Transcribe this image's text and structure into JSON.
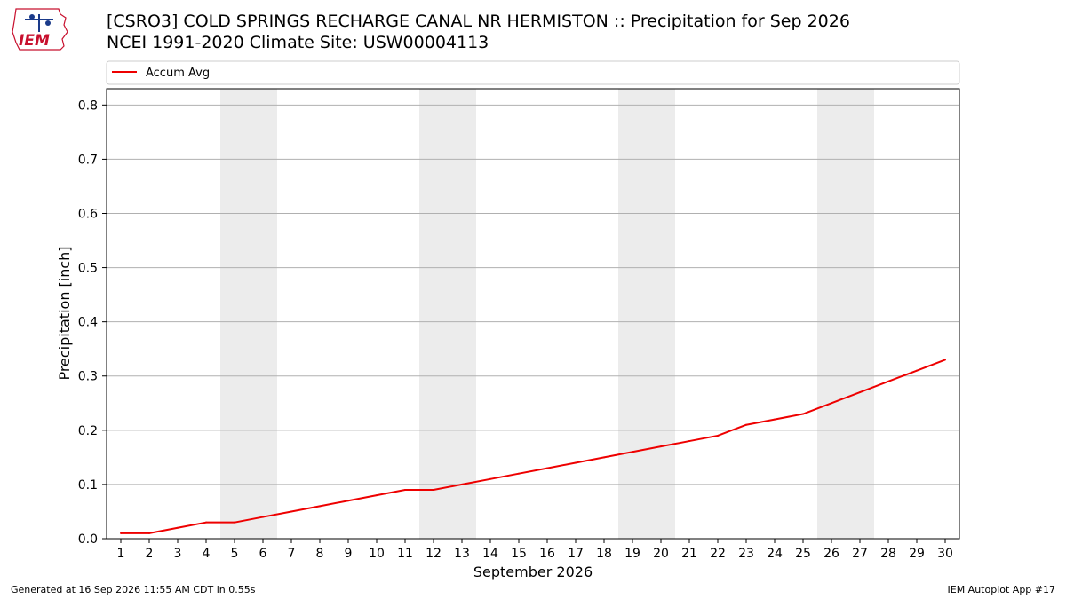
{
  "header": {
    "title_line1": "[CSRO3] COLD SPRINGS RECHARGE CANAL NR HERMISTON :: Precipitation for Sep 2026",
    "title_line2": "NCEI 1991-2020 Climate Site: USW00004113",
    "logo_text": "IEM"
  },
  "footer": {
    "generated": "Generated at 16 Sep 2026 11:55 AM CDT in 0.55s",
    "app": "IEM Autoplot App #17"
  },
  "chart_data": {
    "type": "line",
    "xlabel": "September 2026",
    "ylabel": "Precipitation [inch]",
    "ylim": [
      0,
      0.83
    ],
    "xlim": [
      0.5,
      30.5
    ],
    "yticks": [
      0.0,
      0.1,
      0.2,
      0.3,
      0.4,
      0.5,
      0.6,
      0.7,
      0.8
    ],
    "ytick_labels": [
      "0.0",
      "0.1",
      "0.2",
      "0.3",
      "0.4",
      "0.5",
      "0.6",
      "0.7",
      "0.8"
    ],
    "x": [
      1,
      2,
      3,
      4,
      5,
      6,
      7,
      8,
      9,
      10,
      11,
      12,
      13,
      14,
      15,
      16,
      17,
      18,
      19,
      20,
      21,
      22,
      23,
      24,
      25,
      26,
      27,
      28,
      29,
      30
    ],
    "xtick_labels": [
      "1",
      "2",
      "3",
      "4",
      "5",
      "6",
      "7",
      "8",
      "9",
      "10",
      "11",
      "12",
      "13",
      "14",
      "15",
      "16",
      "17",
      "18",
      "19",
      "20",
      "21",
      "22",
      "23",
      "24",
      "25",
      "26",
      "27",
      "28",
      "29",
      "30"
    ],
    "grid": "horizontal",
    "legend_position": "top",
    "weekend_shading": [
      [
        4.5,
        6.5
      ],
      [
        11.5,
        13.5
      ],
      [
        18.5,
        20.5
      ],
      [
        25.5,
        27.5
      ]
    ],
    "shading_color": "#ececec",
    "series": [
      {
        "name": "Accum Avg",
        "color": "#ee0000",
        "values": [
          0.01,
          0.01,
          0.02,
          0.03,
          0.03,
          0.04,
          0.05,
          0.06,
          0.07,
          0.08,
          0.09,
          0.09,
          0.1,
          0.11,
          0.12,
          0.13,
          0.14,
          0.15,
          0.16,
          0.17,
          0.18,
          0.19,
          0.21,
          0.22,
          0.23,
          0.25,
          0.27,
          0.29,
          0.31,
          0.33
        ]
      }
    ]
  }
}
